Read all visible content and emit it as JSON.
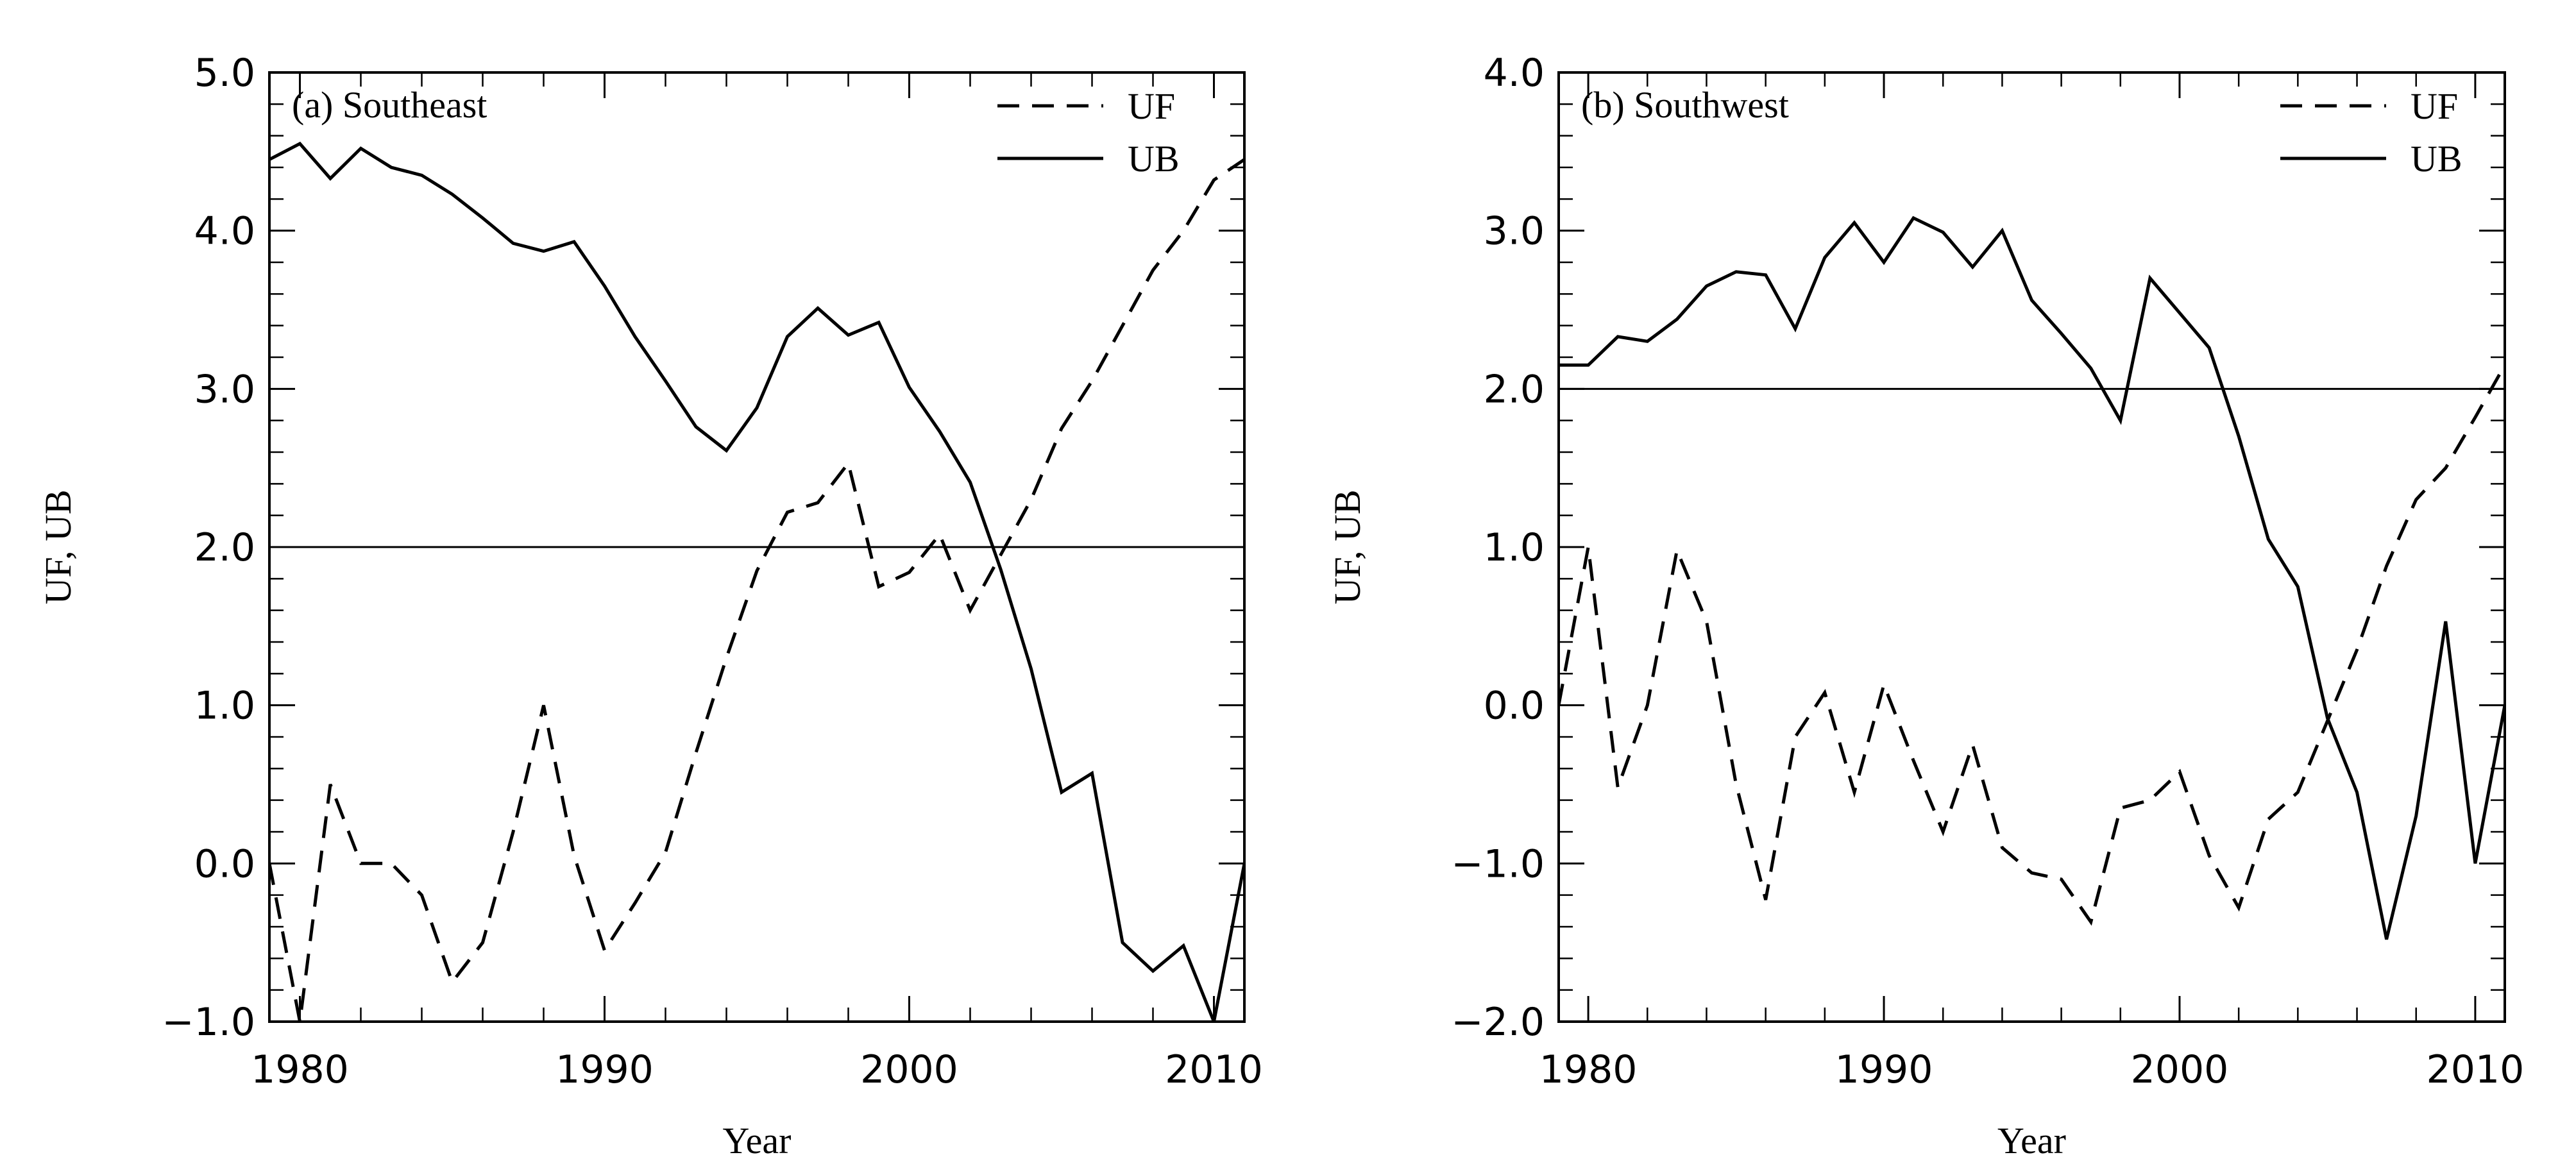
{
  "chart_data": [
    {
      "type": "line",
      "title": "(a)  Southeast",
      "xlabel": "Year",
      "ylabel": "UF, UB",
      "xlim": [
        1979,
        2011
      ],
      "ylim": [
        -1.0,
        5.0
      ],
      "xticks": [
        1980,
        1990,
        2000,
        2010
      ],
      "yticks": [
        -1.0,
        0.0,
        1.0,
        2.0,
        3.0,
        4.0,
        5.0
      ],
      "ytick_labels": [
        "−1.0",
        "0.0",
        "1.0",
        "2.0",
        "3.0",
        "4.0",
        "5.0"
      ],
      "reference_line": 2.0,
      "legend_position": "top-right",
      "x": [
        1979,
        1980,
        1981,
        1982,
        1983,
        1984,
        1985,
        1986,
        1987,
        1988,
        1989,
        1990,
        1991,
        1992,
        1993,
        1994,
        1995,
        1996,
        1997,
        1998,
        1999,
        2000,
        2001,
        2002,
        2003,
        2004,
        2005,
        2006,
        2007,
        2008,
        2009,
        2010,
        2011
      ],
      "series": [
        {
          "name": "UF",
          "style": "dashed",
          "values": [
            0.0,
            -1.0,
            0.5,
            0.0,
            0.0,
            -0.2,
            -0.75,
            -0.5,
            0.2,
            1.0,
            0.05,
            -0.55,
            -0.25,
            0.07,
            0.7,
            1.3,
            1.85,
            2.22,
            2.28,
            2.53,
            1.75,
            1.84,
            2.08,
            1.6,
            1.95,
            2.3,
            2.75,
            3.05,
            3.4,
            3.75,
            4.0,
            4.32,
            4.45
          ]
        },
        {
          "name": "UB",
          "style": "solid",
          "values": [
            4.45,
            4.55,
            4.33,
            4.52,
            4.4,
            4.35,
            4.23,
            4.08,
            3.92,
            3.87,
            3.93,
            3.65,
            3.33,
            3.05,
            2.76,
            2.61,
            2.88,
            3.33,
            3.51,
            3.34,
            3.42,
            3.01,
            2.73,
            2.41,
            1.86,
            1.23,
            0.45,
            0.57,
            -0.5,
            -0.68,
            -0.52,
            -1.0,
            0.0
          ]
        }
      ]
    },
    {
      "type": "line",
      "title": "(b)  Southwest",
      "xlabel": "Year",
      "ylabel": "UF, UB",
      "xlim": [
        1979,
        2011
      ],
      "ylim": [
        -2.0,
        4.0
      ],
      "xticks": [
        1980,
        1990,
        2000,
        2010
      ],
      "yticks": [
        -2.0,
        -1.0,
        0.0,
        1.0,
        2.0,
        3.0,
        4.0
      ],
      "ytick_labels": [
        "−2.0",
        "−1.0",
        "0.0",
        "1.0",
        "2.0",
        "3.0",
        "4.0"
      ],
      "reference_line": 2.0,
      "legend_position": "top-right",
      "x": [
        1979,
        1980,
        1981,
        1982,
        1983,
        1984,
        1985,
        1986,
        1987,
        1988,
        1989,
        1990,
        1991,
        1992,
        1993,
        1994,
        1995,
        1996,
        1997,
        1998,
        1999,
        2000,
        2001,
        2002,
        2003,
        2004,
        2005,
        2006,
        2007,
        2008,
        2009,
        2010,
        2011
      ],
      "series": [
        {
          "name": "UF",
          "style": "dashed",
          "values": [
            0.0,
            1.0,
            -0.52,
            0.0,
            0.98,
            0.53,
            -0.5,
            -1.23,
            -0.2,
            0.08,
            -0.55,
            0.13,
            -0.35,
            -0.8,
            -0.25,
            -0.9,
            -1.06,
            -1.1,
            -1.37,
            -0.65,
            -0.6,
            -0.42,
            -0.95,
            -1.28,
            -0.72,
            -0.55,
            -0.1,
            0.35,
            0.88,
            1.3,
            1.5,
            1.82,
            2.15
          ]
        },
        {
          "name": "UB",
          "style": "solid",
          "values": [
            2.15,
            2.15,
            2.33,
            2.3,
            2.44,
            2.65,
            2.74,
            2.72,
            2.38,
            2.83,
            3.05,
            2.8,
            3.08,
            2.99,
            2.77,
            3.0,
            2.56,
            2.35,
            2.13,
            1.8,
            2.7,
            2.48,
            2.26,
            1.7,
            1.05,
            0.75,
            -0.08,
            -0.55,
            -1.48,
            -0.7,
            0.53,
            -1.0,
            0.0
          ]
        }
      ]
    }
  ]
}
